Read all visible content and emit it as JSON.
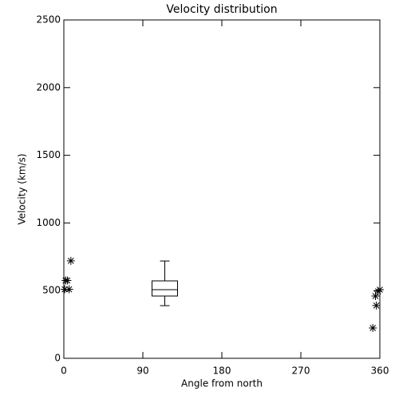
{
  "chart_data": {
    "type": "scatter",
    "title": "Velocity distribution",
    "x_label": "Angle from north",
    "y_label": "Velocity (km/s)",
    "x": [
      1,
      2,
      4,
      6,
      8,
      352,
      355,
      356,
      358,
      360
    ],
    "y": [
      510,
      575,
      575,
      510,
      720,
      224,
      460,
      390,
      495,
      507
    ],
    "color": "#000000",
    "box": {
      "x": 115,
      "whisker_low": 389,
      "q1": 460,
      "median": 507,
      "q3": 572,
      "whisker_high": 719
    },
    "xlim": [
      0,
      360
    ],
    "ylim": [
      0,
      2500
    ],
    "xticks": [
      0,
      90,
      180,
      270,
      360
    ],
    "yticks": [
      0,
      500,
      1000,
      1500,
      2000,
      2500
    ]
  }
}
